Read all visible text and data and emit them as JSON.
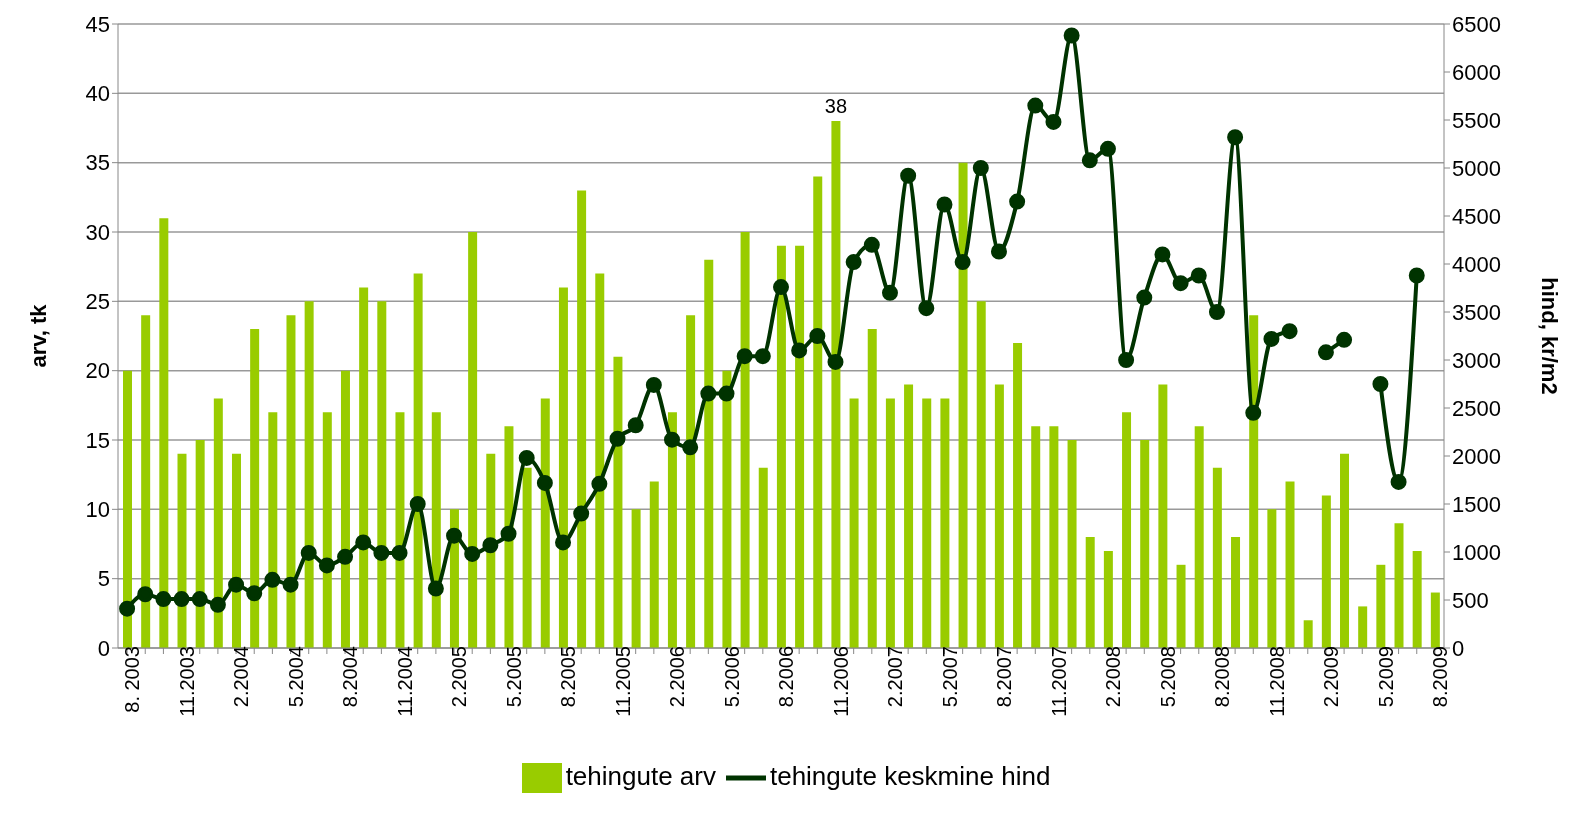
{
  "chart_data": {
    "type": "bar",
    "ylabel": "arv, tk",
    "y2label": "hind, kr/m2",
    "categories": [
      "8. 2003",
      null,
      null,
      "11.2003",
      null,
      null,
      "2.2004",
      null,
      null,
      "5.2004",
      null,
      null,
      "8.2004",
      null,
      null,
      "11.2004",
      null,
      null,
      "2.2005",
      null,
      null,
      "5.2005",
      null,
      null,
      "8.2005",
      null,
      null,
      "11.2005",
      null,
      null,
      "2.2006",
      null,
      null,
      "5.2006",
      null,
      null,
      "8.2006",
      null,
      null,
      "11.2006",
      null,
      null,
      "2.2007",
      null,
      null,
      "5.2007",
      null,
      null,
      "8.2007",
      null,
      null,
      "11.2007",
      null,
      null,
      "2.2008",
      null,
      null,
      "5.2008",
      null,
      null,
      "8.2008",
      null,
      null,
      "11.2008",
      null,
      null,
      "2.2009",
      null,
      null,
      "5.2009",
      null,
      null,
      "8.2009"
    ],
    "series": [
      {
        "name": "tehingute arv",
        "color": "#99cc00",
        "values": [
          20,
          24,
          31,
          14,
          15,
          18,
          14,
          23,
          17,
          24,
          25,
          17,
          20,
          26,
          25,
          17,
          27,
          17,
          10,
          30,
          14,
          16,
          13,
          18,
          26,
          33,
          27,
          21,
          10,
          12,
          17,
          24,
          28,
          20,
          30,
          13,
          29,
          29,
          34,
          38,
          18,
          23,
          18,
          19,
          18,
          18,
          35,
          25,
          19,
          22,
          16,
          16,
          15,
          8,
          7,
          17,
          15,
          19,
          6,
          16,
          13,
          8,
          24,
          10,
          12,
          2,
          11,
          14,
          3,
          6,
          9,
          7,
          4
        ],
        "value_labels": [
          null,
          null,
          null,
          null,
          null,
          null,
          null,
          null,
          null,
          null,
          null,
          null,
          null,
          null,
          null,
          null,
          null,
          null,
          null,
          null,
          null,
          null,
          null,
          null,
          null,
          null,
          null,
          null,
          null,
          null,
          null,
          null,
          null,
          null,
          null,
          null,
          null,
          null,
          null,
          "38",
          null,
          null,
          null,
          null,
          null,
          null,
          null,
          null,
          null,
          null,
          null,
          null,
          null,
          null,
          null,
          null,
          null,
          null,
          null,
          null,
          null,
          null,
          null,
          null,
          null,
          null,
          null,
          null,
          null,
          null,
          null,
          null,
          null
        ]
      },
      {
        "name": "tehingute keskmine hind",
        "type": "line",
        "axis": "y2",
        "color": "#003300",
        "marker": "circle",
        "values": [
          410,
          560,
          510,
          510,
          510,
          450,
          660,
          570,
          710,
          660,
          990,
          860,
          950,
          1100,
          990,
          990,
          1500,
          620,
          1170,
          980,
          1070,
          1190,
          1980,
          1720,
          1100,
          1400,
          1710,
          2180,
          2320,
          2740,
          2170,
          2090,
          2650,
          2650,
          3040,
          3040,
          3760,
          3100,
          3250,
          2980,
          4020,
          4200,
          3700,
          4920,
          3540,
          4620,
          4020,
          5000,
          4130,
          4650,
          5650,
          5480,
          6380,
          5080,
          5200,
          3000,
          3650,
          4100,
          3800,
          3880,
          3500,
          5320,
          2450,
          3220,
          3300,
          null,
          3080,
          3210,
          null,
          2750,
          1730,
          3880,
          null
        ]
      }
    ],
    "ylim": [
      0,
      45
    ],
    "yticks": [
      0,
      5,
      10,
      15,
      20,
      25,
      30,
      35,
      40,
      45
    ],
    "y2lim": [
      0,
      6500
    ],
    "y2ticks": [
      0,
      500,
      1000,
      1500,
      2000,
      2500,
      3000,
      3500,
      4000,
      4500,
      5000,
      5500,
      6000,
      6500
    ],
    "grid": "y",
    "legend": "bottom"
  }
}
